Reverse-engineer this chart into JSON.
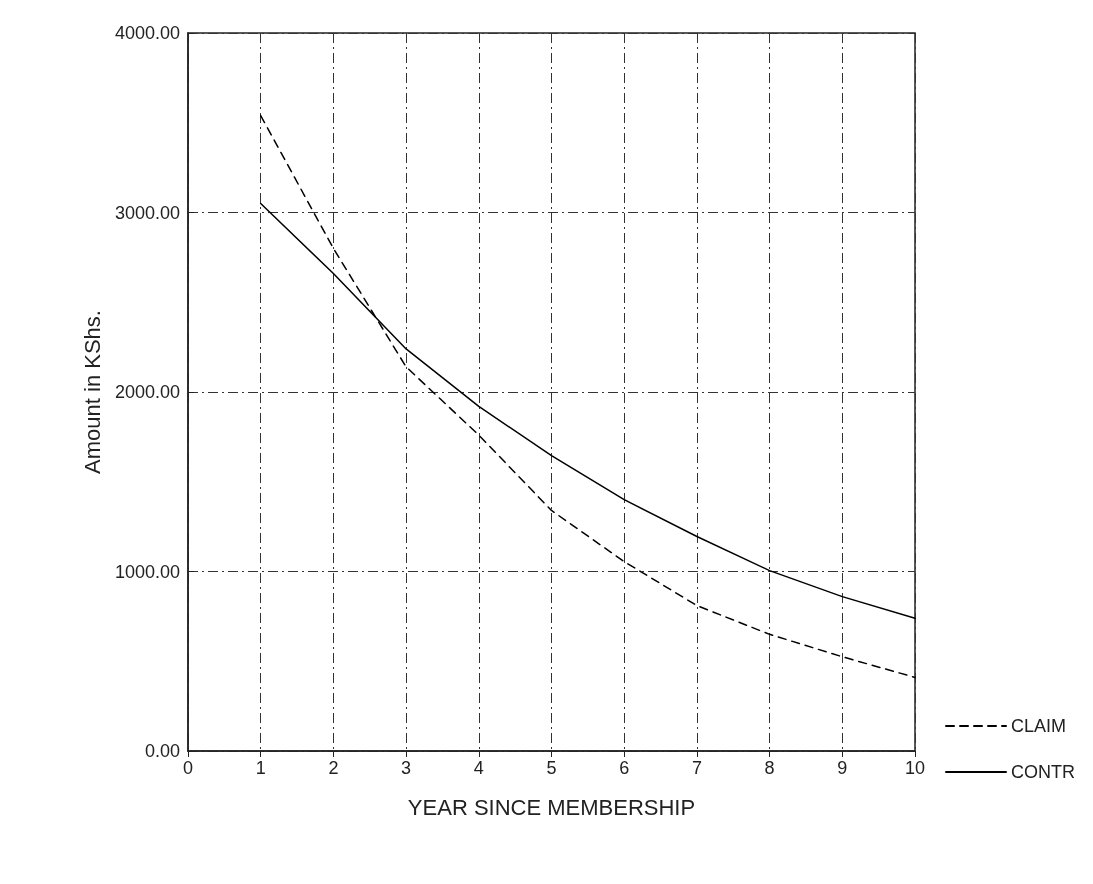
{
  "chart_data": {
    "type": "line",
    "xlabel": "YEAR SINCE MEMBERSHIP",
    "ylabel": "Amount in KShs.",
    "xlim": [
      0,
      10
    ],
    "xticks": [
      0,
      1,
      2,
      3,
      4,
      5,
      6,
      7,
      8,
      9,
      10
    ],
    "ylim": [
      0,
      4000
    ],
    "yticks": [
      {
        "value": 0,
        "label": "0.00"
      },
      {
        "value": 1000,
        "label": "1000.00"
      },
      {
        "value": 2000,
        "label": "2000.00"
      },
      {
        "value": 3000,
        "label": "3000.00"
      },
      {
        "value": 4000,
        "label": "4000.00"
      }
    ],
    "grid": true,
    "legend": "bottom right",
    "marker": "none",
    "series": [
      {
        "name": "CLAIM",
        "color": "#000000",
        "line_style": "dashed",
        "x": [
          1,
          2,
          3,
          4,
          5,
          6,
          7,
          8,
          9,
          10
        ],
        "values": [
          3540,
          2800,
          2140,
          1760,
          1340,
          1055,
          810,
          650,
          525,
          410
        ]
      },
      {
        "name": "CONTR",
        "color": "#000000",
        "line_style": "solid",
        "x": [
          1,
          2,
          3,
          4,
          5,
          6,
          7,
          8,
          9,
          10
        ],
        "values": [
          3050,
          2660,
          2240,
          1920,
          1645,
          1400,
          1195,
          1005,
          860,
          740
        ]
      }
    ]
  }
}
